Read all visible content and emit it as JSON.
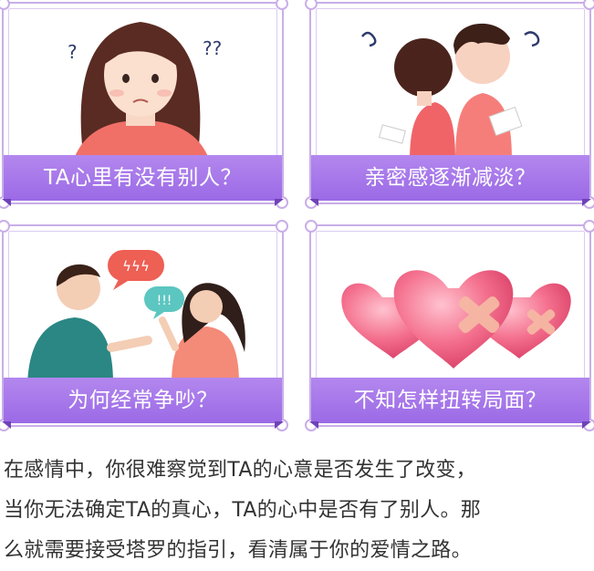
{
  "cards": [
    {
      "label": "TA心里有没有别人？"
    },
    {
      "label": "亲密感逐渐减淡？"
    },
    {
      "label": "为何经常争吵？"
    },
    {
      "label": "不知怎样扭转局面？"
    }
  ],
  "card1": {
    "marks": [
      "?",
      "??"
    ]
  },
  "card3": {
    "bubble_top": "ϟϟϟ",
    "bubble_bottom": "!!!"
  },
  "description": {
    "lines": [
      "在感情中，你很难察觉到TA的心意是否发生了改变，",
      "当你无法确定TA的真心，TA的心中是否有了别人。那",
      "么就需要接受塔罗的指引，看清属于你的爱情之路。"
    ]
  },
  "colors": {
    "banner": "#a97be9",
    "frame": "#c9aee8",
    "text": "#333333",
    "heart": "#f0708e",
    "bandage": "#f6b8a4"
  }
}
